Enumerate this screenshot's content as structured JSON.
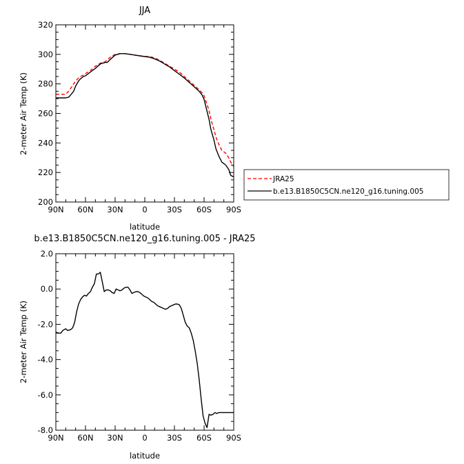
{
  "chart_data": [
    {
      "type": "line",
      "title": "JJA",
      "xlabel": "latitude",
      "ylabel": "2-meter Air Temp (K)",
      "xlim": [
        90,
        -90
      ],
      "ylim": [
        200,
        320
      ],
      "x_ticks": [
        90,
        60,
        30,
        0,
        -30,
        -60,
        -90
      ],
      "x_tick_labels": [
        "90N",
        "60N",
        "30N",
        "0",
        "30S",
        "60S",
        "90S"
      ],
      "y_ticks": [
        200,
        220,
        240,
        260,
        280,
        300,
        320
      ],
      "y_tick_labels": [
        "200",
        "220",
        "240",
        "260",
        "280",
        "300",
        "320"
      ],
      "legend_position": "right",
      "series": [
        {
          "name": "JRA25",
          "color": "#ff0000",
          "dash": true,
          "x": [
            90,
            85,
            82,
            80,
            77,
            75,
            72,
            70,
            67,
            65,
            62,
            60,
            55,
            50,
            45,
            40,
            35,
            30,
            25,
            20,
            15,
            10,
            5,
            0,
            -5,
            -10,
            -15,
            -20,
            -25,
            -30,
            -35,
            -40,
            -45,
            -50,
            -55,
            -58,
            -60,
            -62,
            -65,
            -67,
            -70,
            -72,
            -75,
            -78,
            -80,
            -82,
            -85,
            -87,
            -90
          ],
          "y": [
            273,
            273,
            273,
            273,
            275,
            277,
            280,
            282,
            284,
            285,
            286,
            287,
            289,
            292,
            294,
            295,
            298,
            300,
            300.5,
            300.5,
            300,
            299.5,
            299,
            298.5,
            298.5,
            297.5,
            296,
            294,
            292,
            290,
            288,
            285,
            282,
            279,
            276,
            274,
            272,
            268,
            262,
            256,
            249,
            244,
            239,
            235,
            234,
            233,
            230,
            227,
            224
          ]
        },
        {
          "name": "b.e13.B1850C5CN.ne120_g16.tuning.005",
          "color": "#000000",
          "dash": false,
          "x": [
            90,
            85,
            82,
            80,
            77,
            75,
            72,
            70,
            67,
            65,
            62,
            60,
            55,
            50,
            45,
            43,
            40,
            38,
            35,
            30,
            25,
            20,
            15,
            10,
            5,
            0,
            -5,
            -10,
            -15,
            -20,
            -25,
            -30,
            -35,
            -40,
            -45,
            -50,
            -55,
            -58,
            -60,
            -62,
            -65,
            -67,
            -70,
            -72,
            -75,
            -78,
            -80,
            -82,
            -85,
            -87,
            -90
          ],
          "y": [
            270.5,
            270.5,
            270.5,
            270.5,
            271,
            272.5,
            275,
            278.5,
            282,
            283.5,
            285,
            285.5,
            288,
            290.5,
            293.5,
            294,
            294.5,
            294.5,
            296.5,
            299.5,
            300.5,
            300.5,
            300,
            299.5,
            299,
            298.5,
            298,
            297,
            295.5,
            293.5,
            291.5,
            289,
            286.5,
            284,
            281,
            278,
            275,
            272.5,
            269.5,
            264,
            256,
            249,
            242,
            236,
            231,
            227,
            226,
            225,
            222,
            218,
            217
          ]
        }
      ]
    },
    {
      "type": "line",
      "title": "b.e13.B1850C5CN.ne120_g16.tuning.005 - JRA25",
      "xlabel": "latitude",
      "ylabel": "2-meter Air Temp (K)",
      "xlim": [
        90,
        -90
      ],
      "ylim": [
        -8.0,
        2.0
      ],
      "x_ticks": [
        90,
        60,
        30,
        0,
        -30,
        -60,
        -90
      ],
      "x_tick_labels": [
        "90N",
        "60N",
        "30N",
        "0",
        "30S",
        "60S",
        "90S"
      ],
      "y_ticks": [
        -8.0,
        -6.0,
        -4.0,
        -2.0,
        0.0,
        2.0
      ],
      "y_tick_labels": [
        "-8.0",
        "-6.0",
        "-4.0",
        "-2.0",
        "0.0",
        "2.0"
      ],
      "series": [
        {
          "color": "#000000",
          "dash": false,
          "x": [
            90,
            87,
            85,
            83,
            80,
            78,
            75,
            73,
            71,
            69,
            67,
            65,
            63,
            61,
            59,
            57,
            55,
            53,
            51,
            49,
            47,
            45,
            43,
            41,
            39,
            37,
            35,
            33,
            31,
            29,
            27,
            25,
            23,
            21,
            19,
            17,
            15,
            13,
            11,
            9,
            7,
            5,
            3,
            1,
            -1,
            -3,
            -5,
            -7,
            -9,
            -11,
            -13,
            -15,
            -17,
            -19,
            -21,
            -23,
            -25,
            -27,
            -29,
            -31,
            -33,
            -35,
            -37,
            -39,
            -41,
            -43,
            -45,
            -47,
            -49,
            -51,
            -53,
            -55,
            -57,
            -59,
            -61,
            -63,
            -65,
            -67,
            -69,
            -71,
            -73,
            -75,
            -77,
            -79,
            -81,
            -83,
            -85,
            -87,
            -89,
            -90
          ],
          "y": [
            -2.45,
            -2.5,
            -2.5,
            -2.35,
            -2.25,
            -2.35,
            -2.3,
            -2.2,
            -1.9,
            -1.3,
            -0.85,
            -0.6,
            -0.45,
            -0.35,
            -0.4,
            -0.25,
            -0.15,
            0.1,
            0.3,
            0.85,
            0.85,
            0.95,
            0.4,
            -0.15,
            -0.05,
            -0.05,
            -0.1,
            -0.2,
            -0.25,
            0.0,
            -0.05,
            -0.1,
            -0.05,
            0.05,
            0.1,
            0.1,
            -0.05,
            -0.25,
            -0.2,
            -0.15,
            -0.15,
            -0.2,
            -0.3,
            -0.4,
            -0.45,
            -0.5,
            -0.6,
            -0.7,
            -0.75,
            -0.85,
            -0.95,
            -1.0,
            -1.05,
            -1.1,
            -1.15,
            -1.1,
            -1.0,
            -0.95,
            -0.9,
            -0.85,
            -0.85,
            -0.9,
            -1.1,
            -1.5,
            -1.9,
            -2.1,
            -2.2,
            -2.5,
            -2.9,
            -3.5,
            -4.2,
            -5.1,
            -6.2,
            -7.2,
            -7.6,
            -7.85,
            -7.1,
            -7.15,
            -7.1,
            -7.0,
            -7.05,
            -7.0,
            -7.0,
            -7.0,
            -7.0,
            -7.0,
            -7.0,
            -7.0,
            -7.0,
            -7.0
          ]
        }
      ]
    }
  ]
}
